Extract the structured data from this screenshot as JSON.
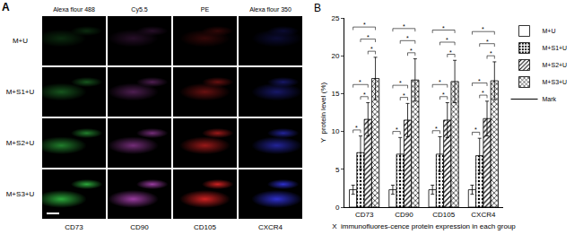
{
  "figure_a": {
    "panel_label": "A",
    "columns": [
      {
        "label": "Alexa flour 488",
        "color": "#38d24a"
      },
      {
        "label": "Cy5.5",
        "color": "#c04cc8"
      },
      {
        "label": "PE",
        "color": "#ff2a2a"
      },
      {
        "label": "Alexa flour 350",
        "color": "#3a3cff"
      }
    ],
    "rows": [
      "M+U",
      "M+S1+U",
      "M+S2+U",
      "M+S3+U"
    ],
    "markers": [
      "CD73",
      "CD90",
      "CD105",
      "CXCR4"
    ]
  },
  "chart_data": {
    "type": "bar",
    "panel_label": "B",
    "x_label": "X  immunofluores-cence protein expression in each group",
    "y_label": "Y  protein level (%)",
    "categories": [
      "CD73",
      "CD90",
      "CD105",
      "CXCR4"
    ],
    "series": [
      {
        "name": "M+U",
        "color": "#ffffff",
        "marker": "none",
        "values": [
          2.3,
          2.3,
          2.3,
          2.3
        ],
        "errors": [
          0.6,
          0.6,
          0.6,
          0.6
        ]
      },
      {
        "name": "M+S1+U",
        "color": "#ffffff",
        "marker": "dots",
        "values": [
          7.2,
          7.0,
          7.0,
          6.8
        ],
        "errors": [
          2.2,
          2.2,
          2.3,
          2.3
        ]
      },
      {
        "name": "M+S2+U",
        "color": "#ffffff",
        "marker": "hatch",
        "values": [
          11.6,
          11.5,
          11.5,
          11.7
        ],
        "errors": [
          2.2,
          2.2,
          2.3,
          2.3
        ]
      },
      {
        "name": "M+S3+U",
        "color": "#ffffff",
        "marker": "crosshatch",
        "values": [
          17.0,
          16.8,
          16.6,
          16.7
        ],
        "errors": [
          2.8,
          2.8,
          2.8,
          2.5
        ]
      }
    ],
    "significance": {
      "name": "Mark",
      "label": "*",
      "pairs": [
        [
          0,
          1
        ],
        [
          1,
          2
        ],
        [
          2,
          3
        ],
        [
          0,
          2
        ],
        [
          1,
          3
        ],
        [
          0,
          3
        ]
      ]
    },
    "ylim": [
      0,
      25
    ],
    "yticks": [
      0,
      5,
      10,
      15,
      20,
      25
    ],
    "grid": false,
    "legend": "right"
  }
}
